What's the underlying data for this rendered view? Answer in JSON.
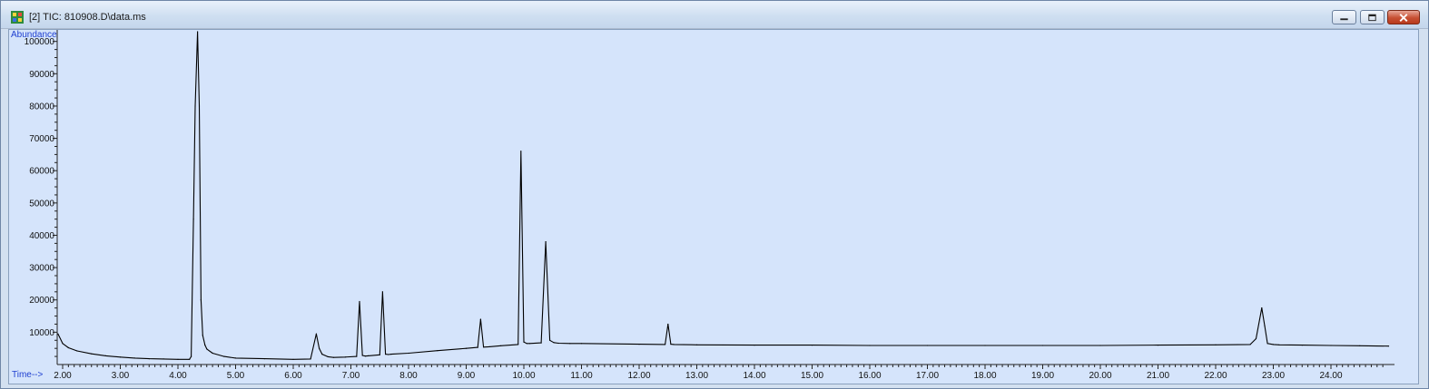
{
  "window": {
    "title": "[2] TIC: 810908.D\\data.ms",
    "controls": [
      "minimize",
      "maximize",
      "close"
    ],
    "icon": "chromatogram-app-icon"
  },
  "colors": {
    "plot_background": "#d5e4fb",
    "trace": "#000000",
    "axis_label": "#1f3fd0"
  },
  "chart_data": {
    "type": "line",
    "title": "",
    "xlabel": "Time-->",
    "ylabel": "Abundance",
    "xlim": [
      1.9,
      25.0
    ],
    "ylim": [
      0,
      103000
    ],
    "xticks": [
      "2.00",
      "3.00",
      "4.00",
      "5.00",
      "6.00",
      "7.00",
      "8.00",
      "9.00",
      "10.00",
      "11.00",
      "12.00",
      "13.00",
      "14.00",
      "15.00",
      "16.00",
      "17.00",
      "18.00",
      "19.00",
      "20.00",
      "21.00",
      "22.00",
      "23.00",
      "24.00"
    ],
    "yticks": [
      "10000",
      "20000",
      "30000",
      "40000",
      "50000",
      "60000",
      "70000",
      "80000",
      "90000",
      "100000"
    ],
    "series": [
      {
        "x": [
          1.92,
          2.0,
          2.1,
          2.25,
          2.5,
          2.75,
          3.0,
          3.25,
          3.5,
          3.75,
          4.0,
          4.2,
          4.23,
          4.27,
          4.3,
          4.34,
          4.37,
          4.4,
          4.43,
          4.47,
          4.5,
          4.6,
          4.8,
          5.0,
          5.5,
          6.0,
          6.3,
          6.4,
          6.45,
          6.5,
          6.6,
          6.7,
          6.9,
          7.1,
          7.15,
          7.2,
          7.25,
          7.3,
          7.5,
          7.55,
          7.6,
          7.65,
          7.7,
          8.0,
          8.5,
          9.0,
          9.2,
          9.25,
          9.3,
          9.4,
          9.6,
          9.9,
          9.95,
          10.0,
          10.05,
          10.1,
          10.3,
          10.38,
          10.45,
          10.52,
          10.6,
          10.8,
          11.0,
          12.0,
          12.45,
          12.5,
          12.55,
          12.6,
          13.0,
          14.0,
          15.0,
          16.0,
          17.0,
          18.0,
          19.0,
          20.0,
          21.0,
          22.0,
          22.6,
          22.7,
          22.8,
          22.85,
          22.9,
          23.0,
          23.1,
          23.5,
          24.0,
          24.5,
          25.0
        ],
        "y": [
          9500,
          6500,
          5200,
          4200,
          3300,
          2700,
          2300,
          2000,
          1800,
          1700,
          1600,
          1600,
          2500,
          45000,
          80000,
          103000,
          80000,
          20000,
          9000,
          6000,
          4800,
          3500,
          2500,
          2000,
          1800,
          1600,
          1700,
          9500,
          5000,
          3200,
          2400,
          2200,
          2300,
          2500,
          19500,
          2800,
          2600,
          2700,
          3000,
          22500,
          3200,
          3100,
          3200,
          3500,
          4300,
          5000,
          5300,
          14000,
          5400,
          5500,
          5800,
          6200,
          66000,
          7000,
          6500,
          6500,
          6700,
          38000,
          7500,
          6800,
          6600,
          6500,
          6500,
          6300,
          6200,
          12500,
          6300,
          6200,
          6100,
          6000,
          6000,
          5900,
          5900,
          5900,
          5900,
          5900,
          6000,
          6100,
          6200,
          8000,
          17500,
          12000,
          6500,
          6200,
          6100,
          6000,
          5900,
          5800,
          5700
        ]
      }
    ]
  }
}
